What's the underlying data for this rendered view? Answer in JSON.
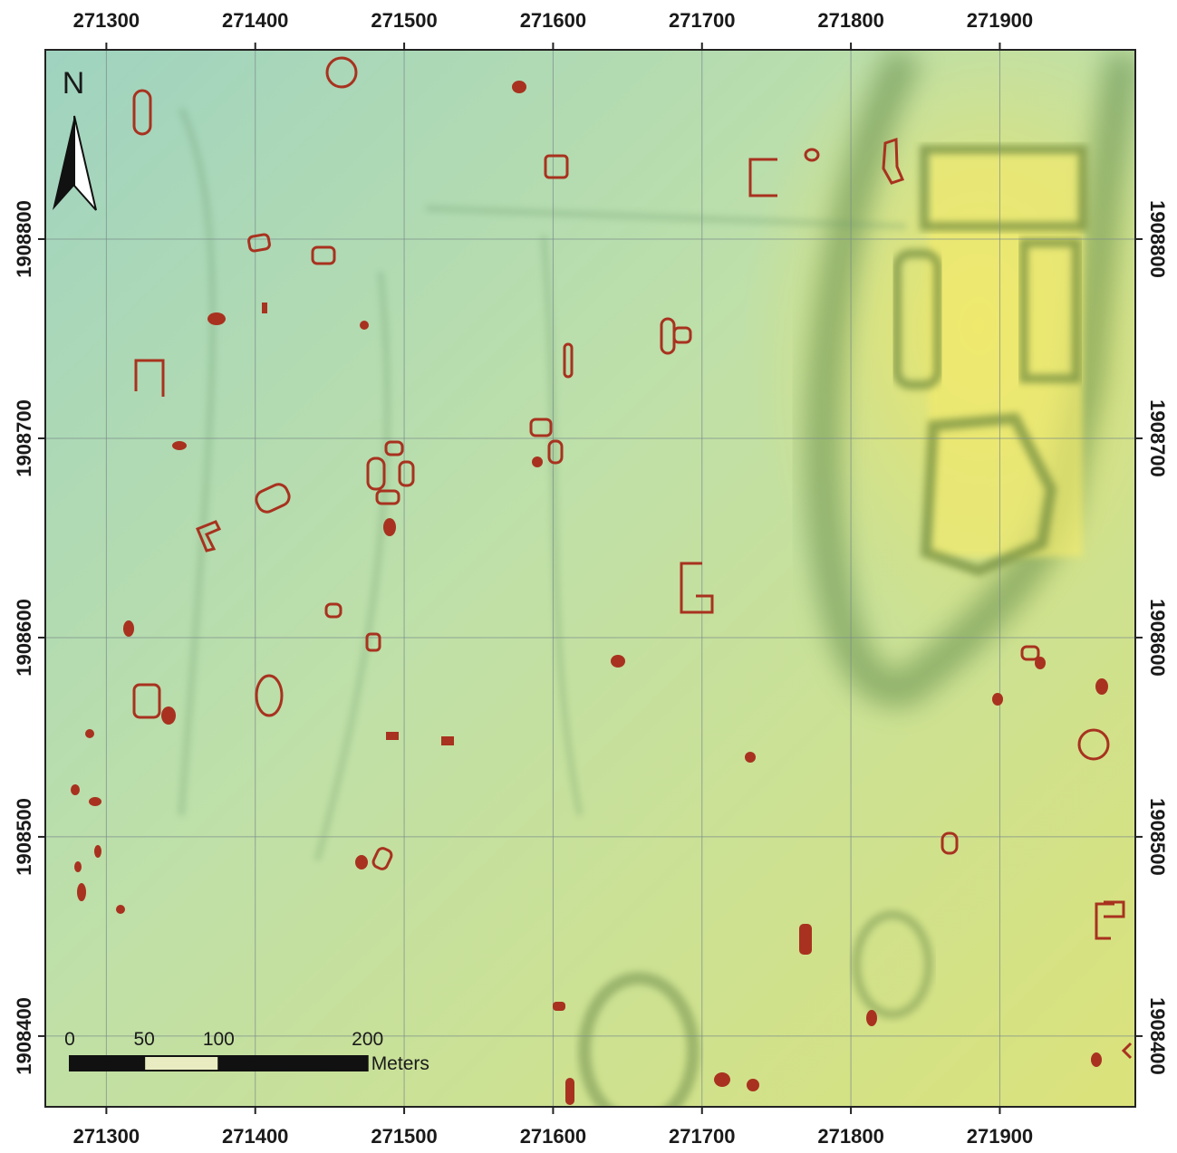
{
  "north_label": "N",
  "x_axis": {
    "xlim": [
      271259,
      271991
    ],
    "ticks": [
      271300,
      271400,
      271500,
      271600,
      271700,
      271800,
      271900
    ]
  },
  "y_axis": {
    "ylim": [
      1908364.5,
      1908895
    ],
    "ticks": [
      1908800,
      1908700,
      1908600,
      1908500,
      1908400
    ]
  },
  "scale_bar": {
    "ticks": [
      0,
      50,
      100,
      200
    ],
    "unit": "Meters"
  }
}
